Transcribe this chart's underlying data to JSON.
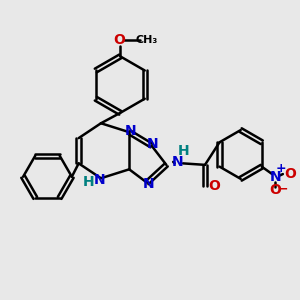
{
  "bg_color": "#e8e8e8",
  "bond_color": "#000000",
  "n_color": "#0000cc",
  "o_color": "#cc0000",
  "h_color": "#008080",
  "line_width": 1.8,
  "font_size": 10,
  "fig_size": [
    3.0,
    3.0
  ],
  "dpi": 100,
  "xlim": [
    0,
    10
  ],
  "ylim": [
    0,
    10
  ]
}
